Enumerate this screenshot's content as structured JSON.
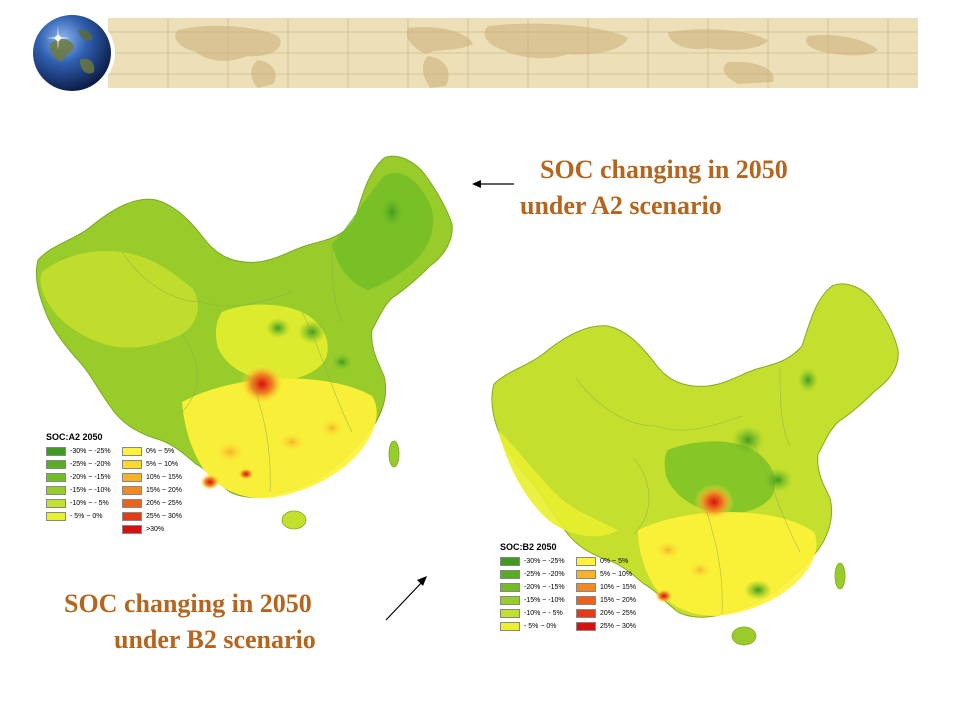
{
  "header": {
    "icons": [
      "globe-icon",
      "world-map-banner"
    ],
    "colors": {
      "banner": "#ede0b9",
      "banner_land": "#d8c290",
      "grid": "#c8b283"
    }
  },
  "captions": {
    "a2": {
      "line1": "SOC changing in 2050",
      "line2": "under A2  scenario"
    },
    "b2": {
      "line1": "SOC changing in 2050",
      "line2": "under B2  scenario"
    },
    "color": "#b5651d"
  },
  "maps": {
    "a2": {
      "legend_title": "SOC:A2 2050",
      "legend_left": [
        {
          "label": "-30% ~ -25%",
          "color": "#3f9a20"
        },
        {
          "label": "-25% ~ -20%",
          "color": "#58ad22"
        },
        {
          "label": "-20% ~ -15%",
          "color": "#72bd26"
        },
        {
          "label": "-15% ~ -10%",
          "color": "#97cc2a"
        },
        {
          "label": "-10% ~ -  5%",
          "color": "#c4df2e"
        },
        {
          "label": "-  5% ~    0%",
          "color": "#e8f02f"
        }
      ],
      "legend_right": [
        {
          "label": "0% ~   5%",
          "color": "#fff23a"
        },
        {
          "label": "5% ~ 10%",
          "color": "#fbd82e"
        },
        {
          "label": "10% ~ 15%",
          "color": "#f7b22a"
        },
        {
          "label": "15% ~ 20%",
          "color": "#f18a22"
        },
        {
          "label": "20% ~ 25%",
          "color": "#ea621c"
        },
        {
          "label": "25% ~ 30%",
          "color": "#e33a17"
        },
        {
          "label": ">30%",
          "color": "#d81010"
        }
      ]
    },
    "b2": {
      "legend_title": "SOC:B2 2050",
      "legend_left": [
        {
          "label": "-30% ~ -25%",
          "color": "#3f9a20"
        },
        {
          "label": "-25% ~ -20%",
          "color": "#58ad22"
        },
        {
          "label": "-20% ~ -15%",
          "color": "#72bd26"
        },
        {
          "label": "-15% ~ -10%",
          "color": "#97cc2a"
        },
        {
          "label": "-10% ~ -  5%",
          "color": "#c4df2e"
        },
        {
          "label": "-  5% ~    0%",
          "color": "#e8f02f"
        }
      ],
      "legend_right": [
        {
          "label": "0% ~   5%",
          "color": "#fff23a"
        },
        {
          "label": "5% ~ 10%",
          "color": "#f7b22a"
        },
        {
          "label": "10% ~ 15%",
          "color": "#f18a22"
        },
        {
          "label": "15% ~ 20%",
          "color": "#ea621c"
        },
        {
          "label": "20% ~ 25%",
          "color": "#e33a17"
        },
        {
          "label": "25% ~ 30%",
          "color": "#d81010"
        }
      ]
    }
  }
}
